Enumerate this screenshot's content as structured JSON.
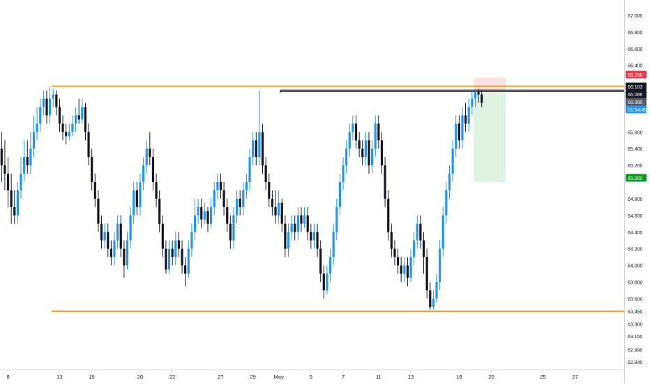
{
  "chart_data": {
    "type": "candlestick",
    "title": "",
    "xlabel": "",
    "ylabel": "",
    "grid": false,
    "ylim": [
      62.75,
      67.1
    ],
    "price_ticks": [
      "67.000",
      "66.800",
      "66.600",
      "66.400",
      "66.250",
      "66.103",
      "66.086",
      "66.080",
      "01:54:45",
      "65.600",
      "65.400",
      "65.200",
      "65.000",
      "64.800",
      "64.600",
      "64.400",
      "64.200",
      "64.000",
      "63.800",
      "63.600",
      "63.450",
      "63.300",
      "63.150",
      "62.990",
      "62.840"
    ],
    "price_tick_values": [
      67.0,
      66.8,
      66.6,
      66.4,
      66.25,
      66.103,
      66.086,
      66.08,
      65.905,
      65.6,
      65.4,
      65.2,
      65.0,
      64.8,
      64.6,
      64.4,
      64.2,
      64.0,
      63.8,
      63.6,
      63.45,
      63.3,
      63.15,
      62.99,
      62.84
    ],
    "x_tick_labels": [
      "8",
      "13",
      "15",
      "20",
      "22",
      "27",
      "29",
      "May",
      "5",
      "7",
      "11",
      "13",
      "18",
      "20",
      "25",
      "27"
    ],
    "x_tick_bars": [
      2,
      18,
      28,
      43,
      53,
      68,
      78,
      86,
      96,
      106,
      117,
      127,
      142,
      152,
      168,
      178
    ],
    "bull_color": "#2196f3",
    "bear_color": "#131722",
    "level_color": "#f39c12",
    "candles": [
      [
        65.4,
        65.2,
        65.6,
        65.0
      ],
      [
        65.2,
        65.1,
        65.5,
        64.9
      ],
      [
        65.1,
        64.9,
        65.3,
        64.7
      ],
      [
        64.9,
        64.7,
        65.1,
        64.5
      ],
      [
        64.7,
        64.6,
        64.9,
        64.5
      ],
      [
        64.6,
        64.9,
        65.0,
        64.5
      ],
      [
        64.9,
        65.1,
        65.3,
        64.8
      ],
      [
        65.1,
        65.3,
        65.5,
        65.0
      ],
      [
        65.3,
        65.2,
        65.5,
        65.1
      ],
      [
        65.2,
        65.4,
        65.6,
        65.1
      ],
      [
        65.4,
        65.6,
        65.8,
        65.3
      ],
      [
        65.6,
        65.7,
        65.9,
        65.5
      ],
      [
        65.7,
        65.9,
        66.0,
        65.6
      ],
      [
        65.9,
        66.0,
        66.1,
        65.8
      ],
      [
        66.0,
        65.8,
        66.1,
        65.7
      ],
      [
        65.8,
        66.0,
        66.15,
        65.7
      ],
      [
        66.0,
        66.05,
        66.12,
        65.9
      ],
      [
        66.05,
        65.9,
        66.1,
        65.8
      ],
      [
        65.9,
        65.7,
        66.0,
        65.6
      ],
      [
        65.7,
        65.6,
        65.8,
        65.5
      ],
      [
        65.6,
        65.55,
        65.7,
        65.45
      ],
      [
        65.55,
        65.6,
        65.7,
        65.5
      ],
      [
        65.6,
        65.7,
        65.8,
        65.55
      ],
      [
        65.7,
        65.8,
        65.9,
        65.6
      ],
      [
        65.8,
        65.75,
        66.0,
        65.7
      ],
      [
        65.75,
        65.9,
        66.0,
        65.7
      ],
      [
        65.9,
        65.6,
        65.95,
        65.5
      ],
      [
        65.6,
        65.3,
        65.7,
        65.2
      ],
      [
        65.3,
        65.0,
        65.4,
        64.9
      ],
      [
        65.0,
        64.8,
        65.1,
        64.7
      ],
      [
        64.8,
        64.5,
        64.9,
        64.4
      ],
      [
        64.5,
        64.3,
        64.6,
        64.2
      ],
      [
        64.3,
        64.4,
        64.5,
        64.2
      ],
      [
        64.4,
        64.2,
        64.5,
        64.1
      ],
      [
        64.2,
        64.1,
        64.3,
        64.0
      ],
      [
        64.1,
        64.3,
        64.4,
        64.0
      ],
      [
        64.3,
        64.5,
        64.6,
        64.2
      ],
      [
        64.5,
        64.2,
        64.6,
        64.1
      ],
      [
        64.2,
        64.0,
        64.3,
        63.85
      ],
      [
        64.0,
        64.3,
        64.4,
        63.95
      ],
      [
        64.3,
        64.6,
        64.7,
        64.2
      ],
      [
        64.6,
        64.9,
        65.0,
        64.5
      ],
      [
        64.9,
        64.7,
        65.0,
        64.6
      ],
      [
        64.7,
        65.0,
        65.1,
        64.6
      ],
      [
        65.0,
        65.2,
        65.3,
        64.9
      ],
      [
        65.2,
        65.4,
        65.5,
        65.1
      ],
      [
        65.4,
        65.3,
        65.6,
        65.2
      ],
      [
        65.3,
        65.0,
        65.4,
        64.9
      ],
      [
        65.0,
        64.8,
        65.1,
        64.7
      ],
      [
        64.8,
        64.5,
        64.9,
        64.4
      ],
      [
        64.5,
        64.2,
        64.6,
        64.1
      ],
      [
        64.2,
        63.95,
        64.3,
        63.9
      ],
      [
        63.95,
        64.2,
        64.3,
        63.9
      ],
      [
        64.2,
        64.1,
        64.3,
        64.0
      ],
      [
        64.1,
        64.3,
        64.4,
        64.0
      ],
      [
        64.3,
        64.2,
        64.4,
        64.1
      ],
      [
        64.2,
        64.0,
        64.3,
        63.9
      ],
      [
        64.0,
        63.9,
        64.1,
        63.75
      ],
      [
        63.9,
        64.2,
        64.3,
        63.85
      ],
      [
        64.2,
        64.4,
        64.5,
        64.1
      ],
      [
        64.4,
        64.6,
        64.8,
        64.3
      ],
      [
        64.6,
        64.7,
        64.8,
        64.5
      ],
      [
        64.7,
        64.55,
        64.8,
        64.45
      ],
      [
        64.55,
        64.65,
        64.75,
        64.5
      ],
      [
        64.65,
        64.5,
        64.7,
        64.4
      ],
      [
        64.5,
        64.7,
        64.8,
        64.45
      ],
      [
        64.7,
        64.9,
        65.0,
        64.6
      ],
      [
        64.9,
        65.0,
        65.1,
        64.8
      ],
      [
        65.0,
        64.9,
        65.1,
        64.8
      ],
      [
        64.9,
        64.7,
        65.0,
        64.6
      ],
      [
        64.7,
        64.5,
        64.8,
        64.4
      ],
      [
        64.5,
        64.3,
        64.6,
        64.2
      ],
      [
        64.3,
        64.6,
        64.7,
        64.2
      ],
      [
        64.6,
        64.8,
        64.9,
        64.5
      ],
      [
        64.8,
        64.7,
        64.9,
        64.6
      ],
      [
        64.7,
        64.9,
        65.0,
        64.6
      ],
      [
        64.9,
        65.0,
        65.1,
        64.8
      ],
      [
        65.0,
        65.3,
        65.4,
        64.9
      ],
      [
        65.3,
        65.5,
        65.6,
        65.2
      ],
      [
        65.5,
        65.3,
        65.6,
        65.2
      ],
      [
        65.3,
        65.6,
        66.1,
        65.2
      ],
      [
        65.6,
        65.2,
        65.7,
        65.1
      ],
      [
        65.2,
        65.0,
        65.3,
        64.9
      ],
      [
        65.0,
        64.8,
        65.1,
        64.7
      ],
      [
        64.8,
        64.7,
        64.9,
        64.6
      ],
      [
        64.7,
        64.6,
        64.9,
        64.5
      ],
      [
        64.6,
        64.75,
        64.9,
        64.5
      ],
      [
        64.75,
        64.5,
        64.8,
        64.4
      ],
      [
        64.5,
        64.2,
        64.6,
        64.1
      ],
      [
        64.2,
        64.4,
        64.5,
        64.1
      ],
      [
        64.4,
        64.5,
        64.6,
        64.3
      ],
      [
        64.5,
        64.4,
        64.6,
        64.3
      ],
      [
        64.4,
        64.6,
        64.7,
        64.3
      ],
      [
        64.6,
        64.5,
        64.7,
        64.4
      ],
      [
        64.5,
        64.6,
        64.7,
        64.45
      ],
      [
        64.6,
        64.4,
        64.7,
        64.3
      ],
      [
        64.4,
        64.3,
        64.5,
        64.2
      ],
      [
        64.3,
        64.4,
        64.5,
        64.2
      ],
      [
        64.4,
        64.2,
        64.5,
        64.1
      ],
      [
        64.2,
        63.9,
        64.3,
        63.8
      ],
      [
        63.9,
        63.7,
        64.0,
        63.6
      ],
      [
        63.7,
        63.9,
        64.0,
        63.65
      ],
      [
        63.9,
        64.1,
        64.2,
        63.8
      ],
      [
        64.1,
        64.4,
        64.5,
        64.0
      ],
      [
        64.4,
        64.7,
        64.8,
        64.3
      ],
      [
        64.7,
        65.0,
        65.1,
        64.6
      ],
      [
        65.0,
        65.2,
        65.3,
        64.9
      ],
      [
        65.2,
        65.4,
        65.5,
        65.1
      ],
      [
        65.4,
        65.6,
        65.7,
        65.3
      ],
      [
        65.6,
        65.7,
        65.8,
        65.5
      ],
      [
        65.7,
        65.5,
        65.8,
        65.4
      ],
      [
        65.5,
        65.4,
        65.6,
        65.3
      ],
      [
        65.4,
        65.3,
        65.5,
        65.2
      ],
      [
        65.3,
        65.5,
        65.6,
        65.2
      ],
      [
        65.5,
        65.2,
        65.6,
        65.1
      ],
      [
        65.2,
        65.4,
        65.5,
        65.1
      ],
      [
        65.4,
        65.7,
        65.8,
        65.3
      ],
      [
        65.7,
        65.5,
        65.8,
        65.4
      ],
      [
        65.5,
        65.2,
        65.6,
        65.1
      ],
      [
        65.2,
        64.8,
        65.3,
        64.7
      ],
      [
        64.8,
        64.4,
        64.9,
        64.3
      ],
      [
        64.4,
        64.2,
        64.5,
        64.1
      ],
      [
        64.2,
        64.1,
        64.3,
        64.0
      ],
      [
        64.1,
        64.0,
        64.2,
        63.9
      ],
      [
        64.0,
        63.9,
        64.1,
        63.8
      ],
      [
        63.9,
        64.0,
        64.1,
        63.8
      ],
      [
        64.0,
        63.85,
        64.1,
        63.75
      ],
      [
        63.85,
        64.1,
        64.2,
        63.8
      ],
      [
        64.1,
        64.3,
        64.4,
        64.0
      ],
      [
        64.3,
        64.5,
        64.6,
        64.2
      ],
      [
        64.5,
        64.3,
        64.6,
        64.2
      ],
      [
        64.3,
        64.1,
        64.4,
        63.9
      ],
      [
        64.1,
        63.7,
        64.2,
        63.6
      ],
      [
        63.7,
        63.5,
        63.8,
        63.47
      ],
      [
        63.5,
        63.6,
        63.7,
        63.47
      ],
      [
        63.6,
        63.8,
        63.9,
        63.55
      ],
      [
        63.8,
        64.2,
        64.3,
        63.7
      ],
      [
        64.2,
        64.6,
        64.7,
        64.1
      ],
      [
        64.6,
        64.9,
        65.0,
        64.5
      ],
      [
        64.9,
        65.1,
        65.2,
        64.8
      ],
      [
        65.1,
        65.4,
        65.5,
        65.0
      ],
      [
        65.4,
        65.7,
        65.8,
        65.3
      ],
      [
        65.7,
        65.5,
        65.8,
        65.4
      ],
      [
        65.5,
        65.8,
        65.9,
        65.4
      ],
      [
        65.8,
        65.7,
        65.95,
        65.6
      ],
      [
        65.7,
        65.9,
        66.0,
        65.6
      ],
      [
        65.9,
        66.0,
        66.08,
        65.8
      ],
      [
        66.0,
        66.08,
        66.12,
        65.9
      ],
      [
        66.08,
        66.05,
        66.12,
        65.95
      ],
      [
        66.05,
        65.95,
        66.1,
        65.9
      ]
    ],
    "levels": [
      {
        "label": "resistance",
        "value": 66.15
      },
      {
        "label": "support",
        "value": 63.45
      },
      {
        "label": "swing-high-1",
        "value": 66.103
      },
      {
        "label": "swing-high-2",
        "value": 66.086
      }
    ],
    "position": {
      "entry": 66.08,
      "stop": 66.25,
      "target": 65.0
    }
  }
}
